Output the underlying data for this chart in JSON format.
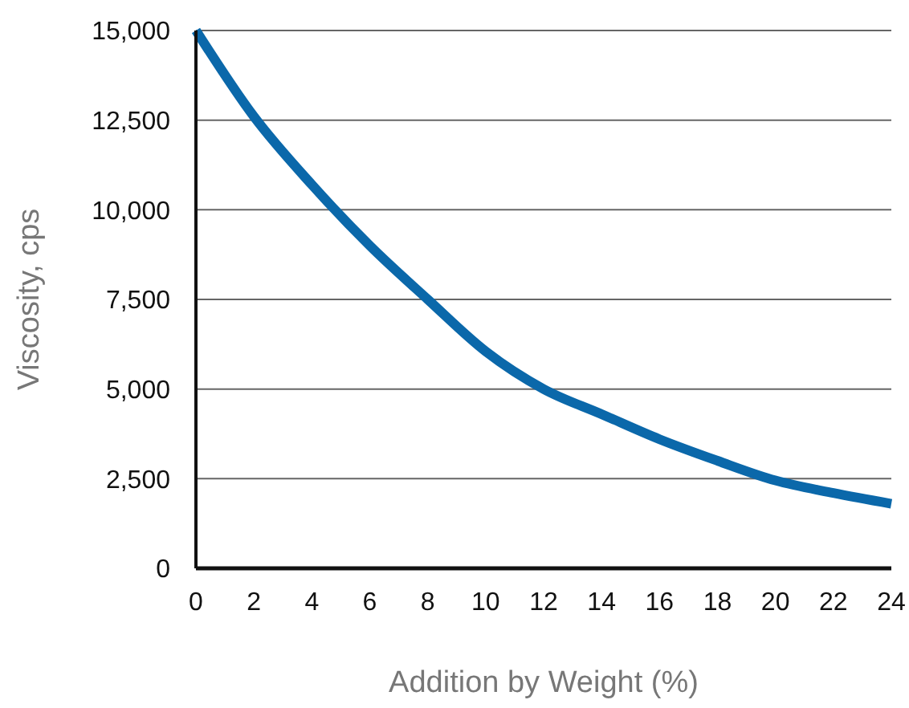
{
  "chart_data": {
    "type": "line",
    "xlabel": "Addition by Weight (%)",
    "ylabel": "Viscosity, cps",
    "x": [
      0,
      2,
      4,
      6,
      8,
      10,
      12,
      14,
      16,
      18,
      20,
      22,
      24
    ],
    "series": [
      {
        "color": "#0b68aa",
        "values": [
          15000,
          12600,
          10700,
          9000,
          7500,
          6050,
          5000,
          4300,
          3600,
          3000,
          2450,
          2100,
          1800
        ]
      }
    ],
    "xlim": [
      0,
      24
    ],
    "xticks": [
      0,
      2,
      4,
      6,
      8,
      10,
      12,
      14,
      16,
      18,
      20,
      22,
      24
    ],
    "ylim": [
      0,
      15000
    ],
    "yticks": [
      0,
      {
        "value": 2500,
        "label": "2,500"
      },
      {
        "value": 5000,
        "label": "5,000"
      },
      {
        "value": 7500,
        "label": "7,500"
      },
      {
        "value": 10000,
        "label": "10,000"
      },
      {
        "value": 12500,
        "label": "12,500"
      },
      {
        "value": 15000,
        "label": "15,000"
      }
    ],
    "grid": "y",
    "marker": "none",
    "line_style": "solid"
  }
}
